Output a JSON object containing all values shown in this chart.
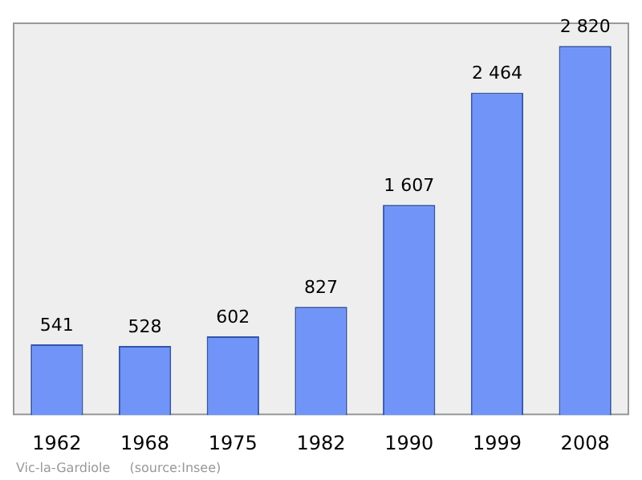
{
  "chart_data": {
    "type": "bar",
    "categories": [
      "1962",
      "1968",
      "1975",
      "1982",
      "1990",
      "1999",
      "2008"
    ],
    "values": [
      541,
      528,
      602,
      827,
      1607,
      2464,
      2820
    ],
    "value_labels": [
      "541",
      "528",
      "602",
      "827",
      "1 607",
      "2 464",
      "2 820"
    ],
    "color": "#7094f7",
    "annotations": [
      "Vic-la-Gardiole",
      "(source:Insee)"
    ]
  }
}
